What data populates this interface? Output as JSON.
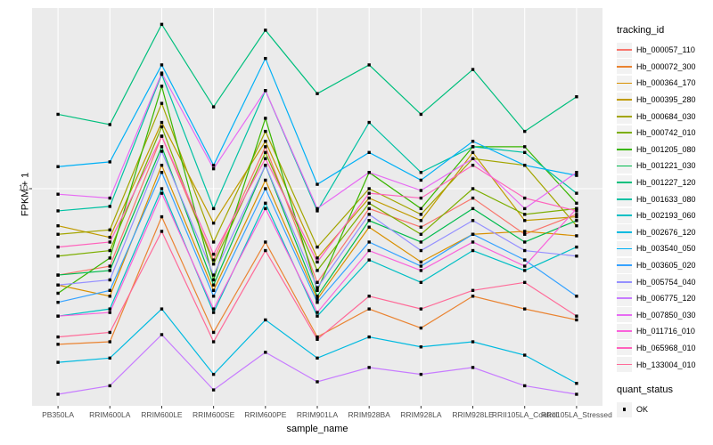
{
  "figure": {
    "y_axis": {
      "title": "FPKM + 1",
      "tick_label": "10"
    },
    "x_axis": {
      "title": "sample_name"
    },
    "legend": {
      "tracking_title": "tracking_id",
      "quant_title": "quant_status",
      "quant_item": "OK"
    },
    "colors": {
      "panel_bg": "#EBEBEB",
      "grid": "#FFFFFF",
      "marker": "#000000",
      "tick_text": "#4D4D4D",
      "tick_mark": "#333333",
      "legend_key_bg": "#F2F2F2"
    }
  },
  "chart_data": {
    "type": "line",
    "title": "",
    "xlabel": "sample_name",
    "ylabel": "FPKM + 1",
    "y_scale": "log10",
    "y_ticks": [
      10
    ],
    "ylim": [
      0.95,
      75
    ],
    "grid": "major vertical gridline per category, horizontal gridline at y=10",
    "legend_position": "right",
    "marker": "black-square",
    "quant_status": {
      "label": "OK",
      "marker": "black-square"
    },
    "categories": [
      "PB350LA",
      "RRIM600LA",
      "RRIM600LE",
      "RRIM600SE",
      "RRIM600PE",
      "RRIM901LA",
      "RRIM928BA",
      "RRIM928LA",
      "RRIM928LE",
      "RRII105LA_Control",
      "RRII105LA_Stressed"
    ],
    "series": [
      {
        "name": "Hb_000057_110",
        "color": "#F8766D",
        "values": [
          3.8,
          4.2,
          18,
          4.5,
          16,
          3.5,
          8.0,
          6.5,
          9.0,
          6.0,
          7.5
        ]
      },
      {
        "name": "Hb_000072_300",
        "color": "#EA8331",
        "values": [
          1.75,
          1.8,
          7.3,
          2.0,
          5.5,
          1.9,
          2.6,
          2.1,
          3.0,
          2.6,
          2.3
        ]
      },
      {
        "name": "Hb_000364_170",
        "color": "#D89000",
        "values": [
          3.4,
          3.0,
          13,
          3.2,
          11,
          2.9,
          6.5,
          4.4,
          6.0,
          6.2,
          5.9
        ]
      },
      {
        "name": "Hb_000395_280",
        "color": "#C09B00",
        "values": [
          6.6,
          5.8,
          21,
          6.8,
          17,
          4.6,
          9.0,
          7.0,
          15,
          7.0,
          7.3
        ]
      },
      {
        "name": "Hb_000684_030",
        "color": "#A3A500",
        "values": [
          6.0,
          6.3,
          26,
          5.5,
          19,
          5.2,
          10,
          7.5,
          14,
          13,
          6.6
        ]
      },
      {
        "name": "Hb_000742_010",
        "color": "#7CAE00",
        "values": [
          4.7,
          5.0,
          20,
          4.3,
          15,
          4.0,
          8.5,
          6.0,
          10,
          7.5,
          8.0
        ]
      },
      {
        "name": "Hb_001205_080",
        "color": "#39B600",
        "values": [
          3.1,
          4.6,
          31.5,
          3.6,
          22,
          3.2,
          12,
          8.0,
          16,
          16,
          8.5
        ]
      },
      {
        "name": "Hb_001221_030",
        "color": "#00BB4E",
        "values": [
          3.8,
          4.0,
          16,
          3.4,
          13,
          3.0,
          7.0,
          5.5,
          8.0,
          5.5,
          7.0
        ]
      },
      {
        "name": "Hb_001227_120",
        "color": "#00BF7D",
        "values": [
          23,
          20.5,
          63,
          25,
          59,
          29,
          40,
          23,
          38,
          19,
          28
        ]
      },
      {
        "name": "Hb_001633_080",
        "color": "#00C1A3",
        "values": [
          7.8,
          8.2,
          36,
          8.0,
          30,
          7.8,
          21,
          12,
          16,
          15,
          9.5
        ]
      },
      {
        "name": "Hb_002193_060",
        "color": "#00BFC4",
        "values": [
          2.4,
          2.6,
          10,
          2.5,
          8.5,
          2.4,
          4.5,
          3.5,
          5.0,
          4.0,
          5.2
        ]
      },
      {
        "name": "Hb_002676_120",
        "color": "#00BAE0",
        "values": [
          1.43,
          1.5,
          2.6,
          1.25,
          2.3,
          1.5,
          1.9,
          1.7,
          1.8,
          1.55,
          1.13
        ]
      },
      {
        "name": "Hb_003540_050",
        "color": "#00B0F6",
        "values": [
          12.8,
          13.5,
          40,
          13,
          43,
          10.5,
          15,
          11,
          17,
          13,
          11.6
        ]
      },
      {
        "name": "Hb_003605_020",
        "color": "#35A2FF",
        "values": [
          2.8,
          3.2,
          12,
          3.0,
          10,
          2.8,
          5.5,
          4.2,
          6.0,
          4.5,
          3.0
        ]
      },
      {
        "name": "Hb_005754_040",
        "color": "#9590FF",
        "values": [
          3.4,
          3.6,
          15.2,
          3.8,
          13,
          3.3,
          7.5,
          5.0,
          7.0,
          5.0,
          4.7
        ]
      },
      {
        "name": "Hb_006775_120",
        "color": "#C77CFF",
        "values": [
          1.0,
          1.1,
          1.95,
          1.05,
          1.6,
          1.15,
          1.35,
          1.25,
          1.35,
          1.1,
          1.0
        ]
      },
      {
        "name": "Hb_007850_030",
        "color": "#E76BF3",
        "values": [
          9.4,
          9.0,
          36.5,
          12.5,
          30,
          8.0,
          12,
          9.8,
          14,
          8.0,
          12
        ]
      },
      {
        "name": "Hb_011716_010",
        "color": "#FA62DB",
        "values": [
          2.4,
          2.5,
          9.5,
          2.6,
          8.0,
          2.5,
          5.0,
          4.0,
          5.5,
          4.2,
          8.0
        ]
      },
      {
        "name": "Hb_065968_010",
        "color": "#FF62BC",
        "values": [
          5.2,
          5.5,
          18,
          4.8,
          14,
          4.4,
          9.5,
          9.0,
          13,
          9.0,
          7.8
        ]
      },
      {
        "name": "Hb_133004_010",
        "color": "#FF6A98",
        "values": [
          1.9,
          2.0,
          6.2,
          1.8,
          5.0,
          1.85,
          3.0,
          2.6,
          3.2,
          3.5,
          2.4
        ]
      }
    ]
  }
}
